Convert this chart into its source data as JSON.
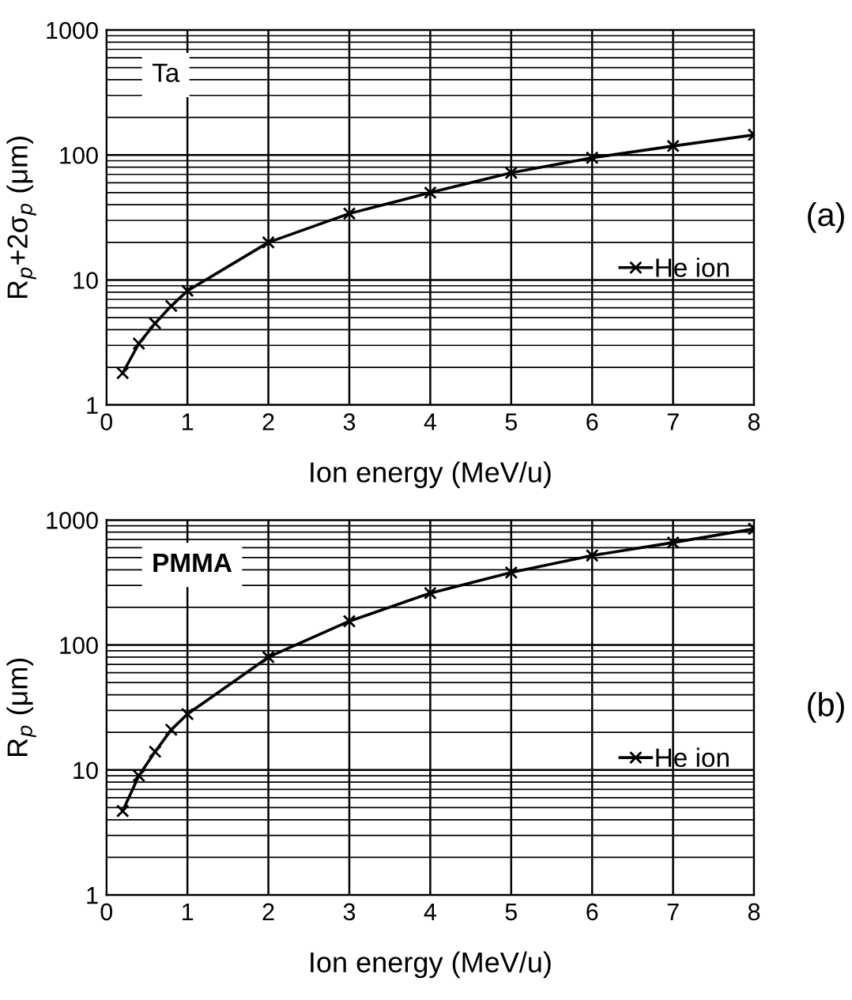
{
  "chart_data": [
    {
      "type": "line",
      "xlabel": "Ion energy (MeV/u)",
      "ylabel": "R$_{p}$+2σ$_{p}$ (μm)",
      "annotations": [
        "Ta",
        "(a)"
      ],
      "x": [
        0.2,
        0.4,
        0.6,
        0.8,
        1,
        2,
        3,
        4,
        5,
        6,
        7,
        8
      ],
      "series": [
        {
          "name": "He ion",
          "color": "#000000",
          "values": [
            1.8,
            3.1,
            4.5,
            6.2,
            8.2,
            20,
            34,
            50,
            72,
            95,
            118,
            145
          ]
        }
      ],
      "xlim": [
        0,
        8
      ],
      "xticks": [
        0,
        1,
        2,
        3,
        4,
        5,
        6,
        7,
        8
      ],
      "ylim": [
        1,
        1000
      ],
      "yticks": [
        1,
        10,
        100,
        1000
      ],
      "log": true,
      "grid": true,
      "legend": "right",
      "marker": "cross",
      "line_style": "solid"
    },
    {
      "type": "line",
      "xlabel": "Ion energy (MeV/u)",
      "ylabel": "R$_{p}$ (μm)",
      "annotations": [
        "PMMA",
        "(b)"
      ],
      "x": [
        0.2,
        0.4,
        0.6,
        0.8,
        1,
        2,
        3,
        4,
        5,
        6,
        7,
        8
      ],
      "series": [
        {
          "name": "He ion",
          "color": "#000000",
          "values": [
            4.7,
            9,
            14,
            21,
            28,
            80,
            155,
            260,
            380,
            520,
            660,
            850
          ]
        }
      ],
      "xlim": [
        0,
        8
      ],
      "xticks": [
        0,
        1,
        2,
        3,
        4,
        5,
        6,
        7,
        8
      ],
      "ylim": [
        1,
        1000
      ],
      "yticks": [
        1,
        10,
        100,
        1000
      ],
      "log": true,
      "grid": true,
      "legend": "right",
      "marker": "cross",
      "line_style": "solid"
    }
  ]
}
